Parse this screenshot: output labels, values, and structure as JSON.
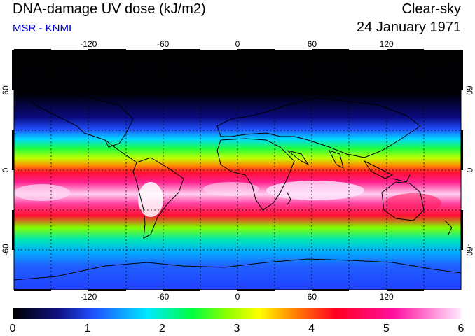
{
  "header": {
    "title": "DNA-damage UV dose (kJ/m2)",
    "source": "MSR - KNMI",
    "sky": "Clear-sky",
    "date": "24 January 1971"
  },
  "map": {
    "lon_ticks": [
      "-120",
      "-60",
      "0",
      "60",
      "120"
    ],
    "lon_values": [
      -120,
      -60,
      0,
      60,
      120
    ],
    "lat_ticks": [
      "60",
      "0",
      "-60"
    ],
    "lat_values": [
      60,
      0,
      -60
    ],
    "lon_range": [
      -180,
      180
    ],
    "lat_range": [
      90,
      -90
    ],
    "gridlines": "dotted, every 30 degrees"
  },
  "colorbar": {
    "labels": [
      "0",
      "1",
      "2",
      "3",
      "4",
      "5",
      "6"
    ],
    "range": [
      0,
      6
    ],
    "colors": [
      "#000000",
      "#1010c0",
      "#2060ff",
      "#00e0ff",
      "#00ff40",
      "#60ff00",
      "#ffff00",
      "#ff8000",
      "#ff0030",
      "#ff00a0",
      "#ff80e0",
      "#ffffff"
    ]
  }
}
